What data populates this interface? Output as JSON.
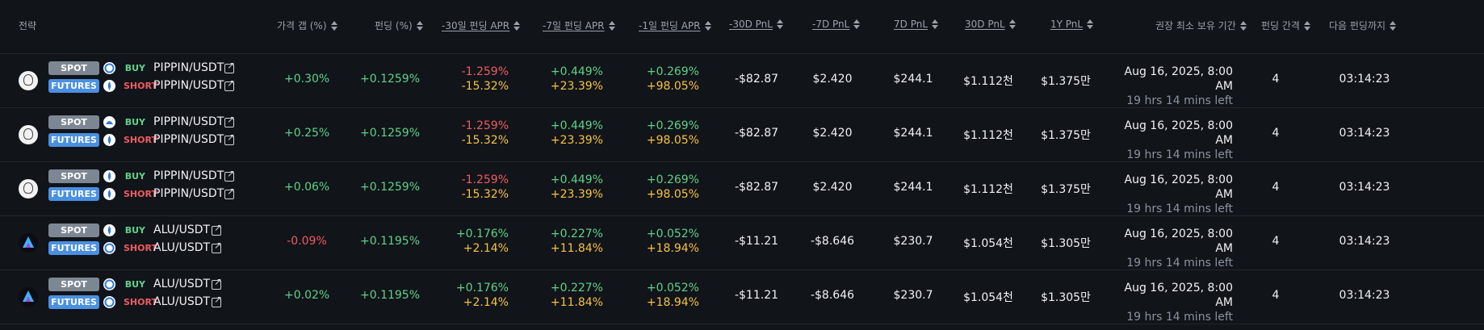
{
  "headers": {
    "strategy": "전략",
    "price_gap": "가격 갭 (%)",
    "funding": "펀딩 (%)",
    "apr30": "-30일 펀딩 APR",
    "apr7": "-7일 펀딩 APR",
    "apr1": "-1일 펀딩 APR",
    "pnl30": "-30D PnL",
    "pnl7": "-7D PnL",
    "f7": "7D PnL",
    "f30": "30D PnL",
    "y1": "1Y PnL",
    "hold": "권장 최소 보유 기간",
    "interval": "펀딩 간격",
    "next": "다음 펀딩까지"
  },
  "labels": {
    "spot": "SPOT",
    "futures": "FUTURES",
    "buy": "BUY",
    "short": "SHORT"
  },
  "colors": {
    "green": "#5ed28a",
    "red": "#ef5b62",
    "yellow": "#f6c344",
    "futures_tag": "#4a90e2",
    "spot_tag": "#7d8793"
  },
  "rows": [
    {
      "logo": "pippin-logo",
      "spot_exchange": "exchange-a-icon",
      "futures_exchange": "exchange-b-icon",
      "pair": "PIPPIN/USDT",
      "price_gap": "+0.30%",
      "funding": "+0.1259%",
      "apr30_a": "-1.259%",
      "apr30_b": "-15.32%",
      "apr7_a": "+0.449%",
      "apr7_b": "+23.39%",
      "apr1_a": "+0.269%",
      "apr1_b": "+98.05%",
      "pnl30": "-$82.87",
      "pnl7": "$2.420",
      "f7": "$244.1",
      "f30": "$1.112천",
      "y1": "$1.375만",
      "hold_date": "Aug 16, 2025, 8:00 AM",
      "hold_left": "19 hrs 14 mins left",
      "interval": "4",
      "next": "03:14:23"
    },
    {
      "logo": "pippin-logo",
      "spot_exchange": "exchange-c-icon",
      "futures_exchange": "exchange-b-icon",
      "pair": "PIPPIN/USDT",
      "price_gap": "+0.25%",
      "funding": "+0.1259%",
      "apr30_a": "-1.259%",
      "apr30_b": "-15.32%",
      "apr7_a": "+0.449%",
      "apr7_b": "+23.39%",
      "apr1_a": "+0.269%",
      "apr1_b": "+98.05%",
      "pnl30": "-$82.87",
      "pnl7": "$2.420",
      "f7": "$244.1",
      "f30": "$1.112천",
      "y1": "$1.375만",
      "hold_date": "Aug 16, 2025, 8:00 AM",
      "hold_left": "19 hrs 14 mins left",
      "interval": "4",
      "next": "03:14:23"
    },
    {
      "logo": "pippin-logo",
      "spot_exchange": "exchange-b-icon",
      "futures_exchange": "exchange-b-icon",
      "pair": "PIPPIN/USDT",
      "price_gap": "+0.06%",
      "funding": "+0.1259%",
      "apr30_a": "-1.259%",
      "apr30_b": "-15.32%",
      "apr7_a": "+0.449%",
      "apr7_b": "+23.39%",
      "apr1_a": "+0.269%",
      "apr1_b": "+98.05%",
      "pnl30": "-$82.87",
      "pnl7": "$2.420",
      "f7": "$244.1",
      "f30": "$1.112천",
      "y1": "$1.375만",
      "hold_date": "Aug 16, 2025, 8:00 AM",
      "hold_left": "19 hrs 14 mins left",
      "interval": "4",
      "next": "03:14:23"
    },
    {
      "logo": "alu-logo",
      "spot_exchange": "exchange-b-icon",
      "futures_exchange": "exchange-a-icon",
      "pair": "ALU/USDT",
      "price_gap": "-0.09%",
      "funding": "+0.1195%",
      "apr30_a": "+0.176%",
      "apr30_b": "+2.14%",
      "apr7_a": "+0.227%",
      "apr7_b": "+11.84%",
      "apr1_a": "+0.052%",
      "apr1_b": "+18.94%",
      "pnl30": "-$11.21",
      "pnl7": "-$8.646",
      "f7": "$230.7",
      "f30": "$1.054천",
      "y1": "$1.305만",
      "hold_date": "Aug 16, 2025, 8:00 AM",
      "hold_left": "19 hrs 14 mins left",
      "interval": "4",
      "next": "03:14:23"
    },
    {
      "logo": "alu-logo",
      "spot_exchange": "exchange-a-icon",
      "futures_exchange": "exchange-a-icon",
      "pair": "ALU/USDT",
      "price_gap": "+0.02%",
      "funding": "+0.1195%",
      "apr30_a": "+0.176%",
      "apr30_b": "+2.14%",
      "apr7_a": "+0.227%",
      "apr7_b": "+11.84%",
      "apr1_a": "+0.052%",
      "apr1_b": "+18.94%",
      "pnl30": "-$11.21",
      "pnl7": "-$8.646",
      "f7": "$230.7",
      "f30": "$1.054천",
      "y1": "$1.305만",
      "hold_date": "Aug 16, 2025, 8:00 AM",
      "hold_left": "19 hrs 14 mins left",
      "interval": "4",
      "next": "03:14:23"
    }
  ]
}
